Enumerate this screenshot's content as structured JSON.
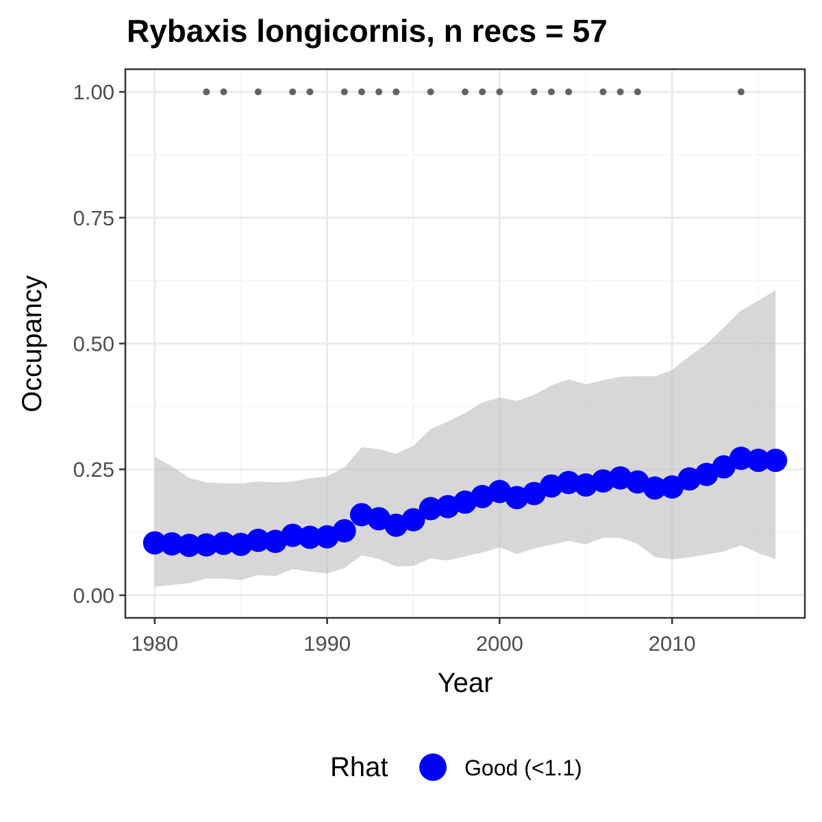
{
  "chart_data": {
    "type": "line",
    "title": "Rybaxis longicornis, n recs = 57",
    "xlabel": "Year",
    "ylabel": "Occupancy",
    "xlim": [
      1978.3,
      2017.7
    ],
    "ylim": [
      -0.045,
      1.045
    ],
    "x_ticks": [
      1980,
      1990,
      2000,
      2010
    ],
    "x_tick_labels": [
      "1980",
      "1990",
      "2000",
      "2010"
    ],
    "y_ticks": [
      0,
      0.25,
      0.5,
      0.75,
      1.0
    ],
    "y_tick_labels": [
      "0.00",
      "0.25",
      "0.50",
      "0.75",
      "1.00"
    ],
    "grid": true,
    "series": [
      {
        "type": "ribbon",
        "x": [
          1980,
          1981,
          1982,
          1983,
          1984,
          1985,
          1986,
          1987,
          1988,
          1989,
          1990,
          1991,
          1992,
          1993,
          1994,
          1995,
          1996,
          1997,
          1998,
          1999,
          2000,
          2001,
          2002,
          2003,
          2004,
          2005,
          2006,
          2007,
          2008,
          2009,
          2010,
          2011,
          2012,
          2013,
          2014,
          2015,
          2016
        ],
        "lower": [
          0.017,
          0.02,
          0.024,
          0.033,
          0.033,
          0.03,
          0.04,
          0.038,
          0.052,
          0.047,
          0.043,
          0.054,
          0.079,
          0.072,
          0.057,
          0.058,
          0.073,
          0.069,
          0.077,
          0.085,
          0.095,
          0.082,
          0.093,
          0.1,
          0.108,
          0.101,
          0.114,
          0.114,
          0.102,
          0.076,
          0.071,
          0.075,
          0.081,
          0.087,
          0.099,
          0.084,
          0.072
        ],
        "upper": [
          0.275,
          0.256,
          0.233,
          0.224,
          0.222,
          0.222,
          0.226,
          0.224,
          0.226,
          0.232,
          0.236,
          0.254,
          0.294,
          0.29,
          0.281,
          0.297,
          0.33,
          0.345,
          0.362,
          0.383,
          0.393,
          0.386,
          0.398,
          0.417,
          0.429,
          0.419,
          0.427,
          0.434,
          0.435,
          0.435,
          0.447,
          0.475,
          0.499,
          0.532,
          0.566,
          0.585,
          0.606
        ]
      },
      {
        "type": "points",
        "name": "Good (<1.1)",
        "x": [
          1980,
          1981,
          1982,
          1983,
          1984,
          1985,
          1986,
          1987,
          1988,
          1989,
          1990,
          1991,
          1992,
          1993,
          1994,
          1995,
          1996,
          1997,
          1998,
          1999,
          2000,
          2001,
          2002,
          2003,
          2004,
          2005,
          2006,
          2007,
          2008,
          2009,
          2010,
          2011,
          2012,
          2013,
          2014,
          2015,
          2016
        ],
        "y": [
          0.104,
          0.102,
          0.099,
          0.1,
          0.103,
          0.101,
          0.109,
          0.107,
          0.119,
          0.115,
          0.116,
          0.128,
          0.16,
          0.152,
          0.139,
          0.15,
          0.172,
          0.176,
          0.185,
          0.196,
          0.206,
          0.194,
          0.202,
          0.217,
          0.224,
          0.219,
          0.227,
          0.233,
          0.225,
          0.213,
          0.215,
          0.231,
          0.24,
          0.255,
          0.272,
          0.268,
          0.268
        ]
      },
      {
        "type": "records",
        "x": [
          1983,
          1984,
          1986,
          1988,
          1989,
          1991,
          1992,
          1993,
          1994,
          1996,
          1998,
          1999,
          2000,
          2002,
          2003,
          2004,
          2006,
          2007,
          2008,
          2014
        ],
        "y": [
          1,
          1,
          1,
          1,
          1,
          1,
          1,
          1,
          1,
          1,
          1,
          1,
          1,
          1,
          1,
          1,
          1,
          1,
          1,
          1
        ]
      }
    ],
    "legend": {
      "title": "Rhat",
      "position": "bottom",
      "entries": [
        "Good (<1.1)"
      ]
    },
    "colors": {
      "points": "#0000ff",
      "ribbon": "#bebebe",
      "records": "#636363",
      "grid_major": "#ebebeb",
      "grid_minor": "#f4f4f4",
      "panel_border": "#333333",
      "axis_text": "#4d4d4d"
    }
  }
}
